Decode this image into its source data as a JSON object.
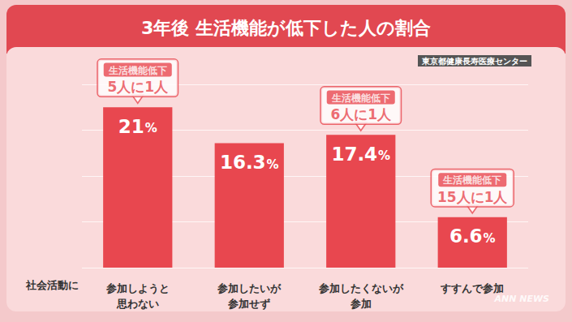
{
  "chart_data": {
    "type": "bar",
    "title": "3年後 生活機能が低下した人の割合",
    "source": "東京都健康長寿医療センター",
    "xlabel": "社会活動に",
    "categories": [
      "参加しようと\n思わない",
      "参加したいが\n参加せず",
      "参加したくないが\n参加",
      "すすんで参加"
    ],
    "values": [
      21,
      16.3,
      17.4,
      6.6
    ],
    "value_labels": [
      "21%",
      "16.3%",
      "17.4%",
      "6.6%"
    ],
    "color": "#e8474f",
    "ylim": [
      0,
      24
    ],
    "yticks": [
      0,
      6,
      12,
      18,
      24
    ],
    "grid": true,
    "data_labels": true,
    "tick_labels": false,
    "annotations": [
      {
        "category": "参加しようと\n思わない",
        "label": "生活機能低下",
        "text": "5人に1人"
      },
      {
        "category": "参加したくないが\n参加",
        "label": "生活機能低下",
        "text": "6人に1人"
      },
      {
        "category": "すすんで参加",
        "label": "生活機能低下",
        "text": "15人に1人"
      }
    ],
    "watermark": "ANN NEWS"
  }
}
